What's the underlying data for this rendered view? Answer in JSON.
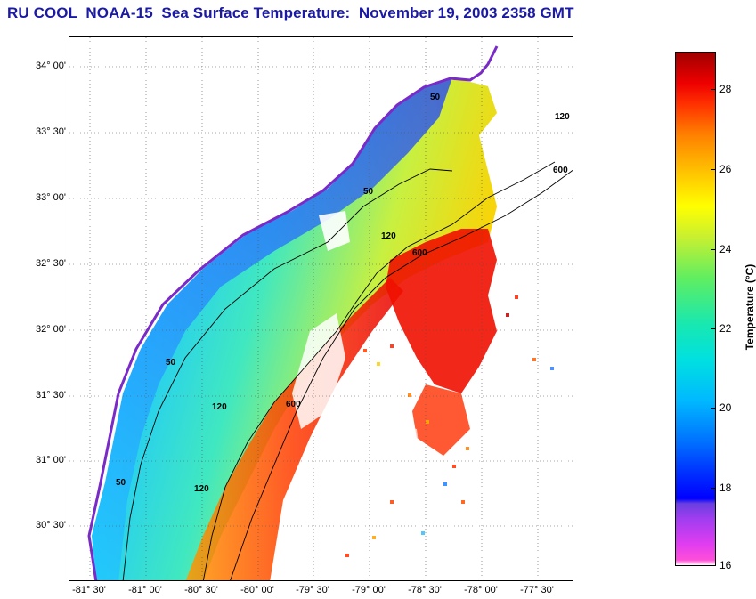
{
  "title": "RU COOL  NOAA-15  Sea Surface Temperature:  November 19, 2003 2358 GMT",
  "map": {
    "latitude_labels": [
      "34° 00'",
      "33° 30'",
      "33° 00'",
      "32° 30'",
      "32° 00'",
      "31° 30'",
      "31° 00'",
      "30° 30'"
    ],
    "longitude_labels": [
      "-81° 30'",
      "-81° 00'",
      "-80° 30'",
      "-80° 00'",
      "-79° 30'",
      "-79° 00'",
      "-78° 30'",
      "-78° 00'",
      "-77° 30'"
    ],
    "contour_labels": [
      "50",
      "120",
      "600"
    ]
  },
  "colorbar": {
    "label": "Temperature (°C)",
    "ticks": [
      "28",
      "26",
      "24",
      "22",
      "20",
      "18",
      "16"
    ],
    "range_celsius": [
      16,
      29
    ]
  },
  "colors": {
    "title": "#1a1aa6",
    "land": "#ffffff",
    "coast": "#6a2ac0",
    "contour": "#000000"
  }
}
